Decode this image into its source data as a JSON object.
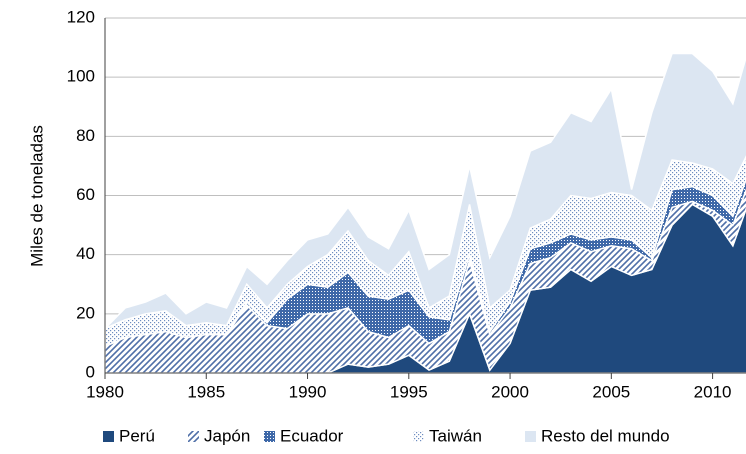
{
  "chart_data": {
    "type": "stacked_area",
    "y_label": "Miles de toneladas",
    "x": [
      1980,
      1981,
      1982,
      1983,
      1984,
      1985,
      1986,
      1987,
      1988,
      1989,
      1990,
      1991,
      1992,
      1993,
      1994,
      1995,
      1996,
      1997,
      1998,
      1999,
      2000,
      2001,
      2002,
      2003,
      2004,
      2005,
      2006,
      2007,
      2008,
      2009,
      2010,
      2011,
      2012
    ],
    "series": [
      {
        "name": "Perú",
        "color": "#1f497d",
        "pattern": "solid",
        "values": [
          0,
          0,
          0,
          0,
          0,
          0,
          0,
          0,
          0,
          0,
          0,
          0,
          3,
          2,
          3,
          6,
          1,
          4,
          20,
          1,
          10,
          28,
          29,
          35,
          31,
          36,
          33,
          35,
          50,
          57,
          53,
          43,
          62
        ]
      },
      {
        "name": "Japón",
        "color": "#4f6fa8",
        "pattern": "hatch",
        "values": [
          9,
          12,
          13,
          14,
          12,
          13,
          13,
          23,
          16,
          15,
          20,
          20,
          19,
          12,
          9,
          10,
          9,
          10,
          18,
          12,
          12,
          9,
          10,
          9,
          10,
          7,
          9,
          3,
          6,
          1,
          2,
          7,
          6
        ]
      },
      {
        "name": "Ecuador",
        "color": "#3e68a8",
        "pattern": "dense-dots",
        "values": [
          0,
          0,
          0,
          0,
          0,
          0,
          0,
          1,
          1,
          10,
          10,
          9,
          12,
          12,
          13,
          12,
          9,
          4,
          2,
          1,
          2,
          5,
          5,
          3,
          4,
          3,
          3,
          1,
          6,
          5,
          5,
          3,
          4
        ]
      },
      {
        "name": "Taiwán",
        "color": "#6d8cc0",
        "pattern": "sparse-dots",
        "values": [
          6,
          6,
          7,
          7,
          4,
          4,
          3,
          6,
          5,
          5,
          6,
          11,
          14,
          12,
          8,
          13,
          3,
          8,
          17,
          8,
          4,
          7,
          8,
          13,
          14,
          15,
          15,
          16,
          10,
          8,
          9,
          11,
          6
        ]
      },
      {
        "name": "Resto del mundo",
        "color": "#dce6f2",
        "pattern": "solid",
        "values": [
          0,
          4,
          4,
          6,
          4,
          7,
          6,
          6,
          8,
          8,
          9,
          7,
          8,
          8,
          9,
          14,
          13,
          14,
          13,
          17,
          25,
          26,
          26,
          28,
          26,
          35,
          2,
          33,
          36,
          37,
          33,
          27,
          37
        ]
      }
    ],
    "xlim": [
      1980,
      2011.6
    ],
    "xticks": [
      1980,
      1985,
      1990,
      1995,
      2000,
      2005,
      2010
    ],
    "ylim": [
      0,
      120
    ],
    "yticks": [
      0,
      20,
      40,
      60,
      80,
      100,
      120
    ],
    "grid": true,
    "legend": "bottom"
  }
}
